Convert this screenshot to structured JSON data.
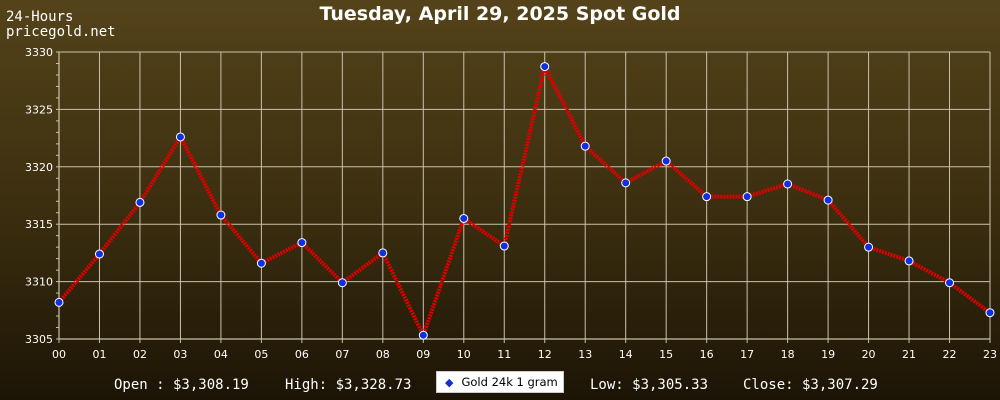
{
  "header": {
    "corner_line1": "24-Hours",
    "corner_line2": "pricegold.net",
    "title": "Tuesday, April 29, 2025 Spot Gold"
  },
  "stats": {
    "open": "Open : $3,308.19",
    "high": "High: $3,328.73",
    "low": "Low: $3,305.33",
    "close": "Close: $3,307.29"
  },
  "legend": {
    "label": "Gold 24k 1 gram",
    "marker_icon": "diamond-marker-icon"
  },
  "colors": {
    "line": "#e00000",
    "marker": "#1030e0",
    "grid": "#c9c2ae",
    "axis_text": "#ffffff"
  },
  "chart_data": {
    "type": "line",
    "title": "Tuesday, April 29, 2025 Spot Gold",
    "xlabel": "",
    "ylabel": "",
    "categories": [
      "00",
      "01",
      "02",
      "03",
      "04",
      "05",
      "06",
      "07",
      "08",
      "09",
      "10",
      "11",
      "12",
      "13",
      "14",
      "15",
      "16",
      "17",
      "18",
      "19",
      "20",
      "21",
      "22",
      "23"
    ],
    "series": [
      {
        "name": "Gold 24k 1 gram",
        "values": [
          3308.19,
          3312.4,
          3316.9,
          3322.6,
          3315.8,
          3311.6,
          3313.4,
          3309.9,
          3312.5,
          3305.33,
          3315.5,
          3313.1,
          3328.73,
          3321.8,
          3318.6,
          3320.5,
          3317.4,
          3317.4,
          3318.5,
          3317.1,
          3313.0,
          3311.8,
          3309.9,
          3307.29
        ]
      }
    ],
    "ylim": [
      3305,
      3330
    ],
    "yticks": [
      3305,
      3310,
      3315,
      3320,
      3325,
      3330
    ],
    "grid": true,
    "legend_position": "bottom-center"
  }
}
